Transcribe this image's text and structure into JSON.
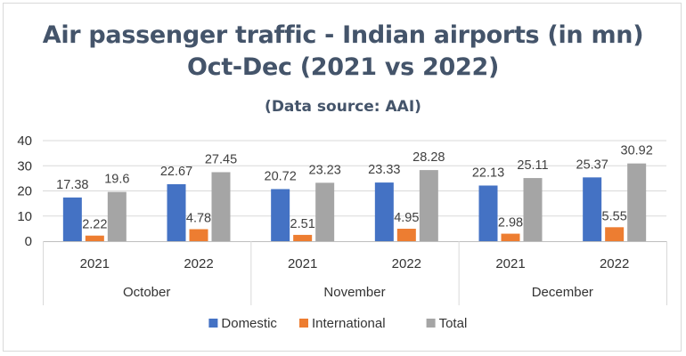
{
  "title_line1": "Air passenger traffic - Indian airports (in mn)",
  "title_line2": "Oct-Dec (2021 vs 2022)",
  "subtitle": "(Data source: AAI)",
  "chart_data": {
    "type": "bar",
    "groups": [
      "October",
      "November",
      "December"
    ],
    "categories": [
      "2021",
      "2022",
      "2021",
      "2022",
      "2021",
      "2022"
    ],
    "ylim": [
      0,
      40
    ],
    "yticks": [
      0,
      10,
      20,
      30,
      40
    ],
    "series": [
      {
        "name": "Domestic",
        "color": "#4472c4",
        "values": [
          17.38,
          22.67,
          20.72,
          23.33,
          22.13,
          25.37
        ]
      },
      {
        "name": "International",
        "color": "#ed7d31",
        "values": [
          2.22,
          4.78,
          2.51,
          4.95,
          2.98,
          5.55
        ]
      },
      {
        "name": "Total",
        "color": "#a5a5a5",
        "values": [
          19.6,
          27.45,
          23.23,
          28.28,
          25.11,
          30.92
        ]
      }
    ],
    "legend_position": "bottom",
    "grid": true
  }
}
